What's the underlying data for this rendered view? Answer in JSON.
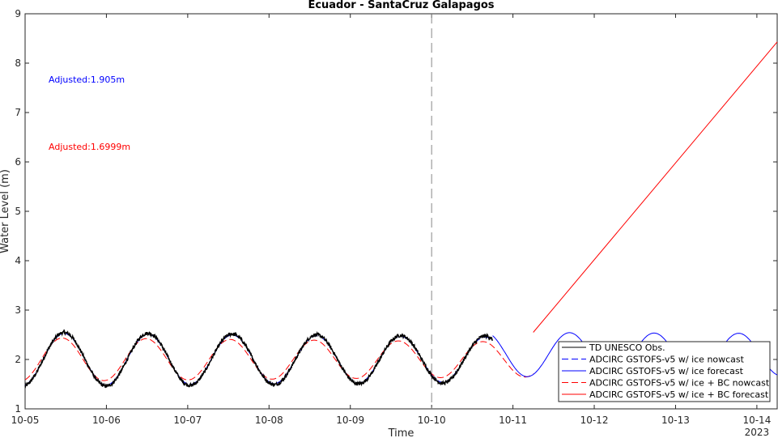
{
  "chart_data": {
    "type": "line",
    "title": "Ecuador - SantaCruz Galapagos",
    "xlabel": "Time",
    "ylabel": "Water Level (m)",
    "year_label": "2023",
    "x_tick_labels": [
      "10-05",
      "10-06",
      "10-07",
      "10-08",
      "10-09",
      "10-10",
      "10-11",
      "10-12",
      "10-13",
      "10-14"
    ],
    "y_ticks": [
      1,
      2,
      3,
      4,
      5,
      6,
      7,
      8,
      9
    ],
    "ylim": [
      1,
      9
    ],
    "xlim_days": [
      0,
      9.25
    ],
    "nowcast_divider_day": 5,
    "grid": false,
    "legend_position": "bottom-right",
    "annotations": [
      {
        "text": "Adjusted:1.905m",
        "color": "#0000ff"
      },
      {
        "text": "Adjusted:1.6999m",
        "color": "#ff0000"
      }
    ],
    "series": [
      {
        "name": "TD UNESCO Obs.",
        "color": "#000000",
        "dash": "solid",
        "x_range": [
          0,
          5.75
        ],
        "tide_mean": 2.0,
        "tide_amp": 0.52,
        "tide_phase": 0.5,
        "noise": 0.035
      },
      {
        "name": "ADCIRC GSTOFS-v5 w/ ice nowcast",
        "color": "#0000ff",
        "dash": "dashed",
        "x_range": [
          0,
          5.75
        ],
        "tide_mean": 2.0,
        "tide_amp": 0.5,
        "tide_phase": 0.5
      },
      {
        "name": "ADCIRC GSTOFS-v5 w/ ice forecast",
        "color": "#0000ff",
        "dash": "solid",
        "x_range": [
          5.75,
          9.25
        ],
        "tide_mean": 2.1,
        "tide_amp": 0.5,
        "tide_phase": 0.5
      },
      {
        "name": "ADCIRC GSTOFS-v5 w/ ice + BC nowcast",
        "color": "#ff0000",
        "dash": "dashed",
        "x_range": [
          0,
          6.25
        ],
        "tide_mean": 2.0,
        "tide_amp": 0.4,
        "tide_phase": 0.48
      },
      {
        "name": "ADCIRC GSTOFS-v5 w/ ice + BC forecast",
        "color": "#ff0000",
        "dash": "solid",
        "points": [
          [
            6.25,
            2.55
          ],
          [
            9.25,
            8.43
          ]
        ]
      }
    ]
  }
}
